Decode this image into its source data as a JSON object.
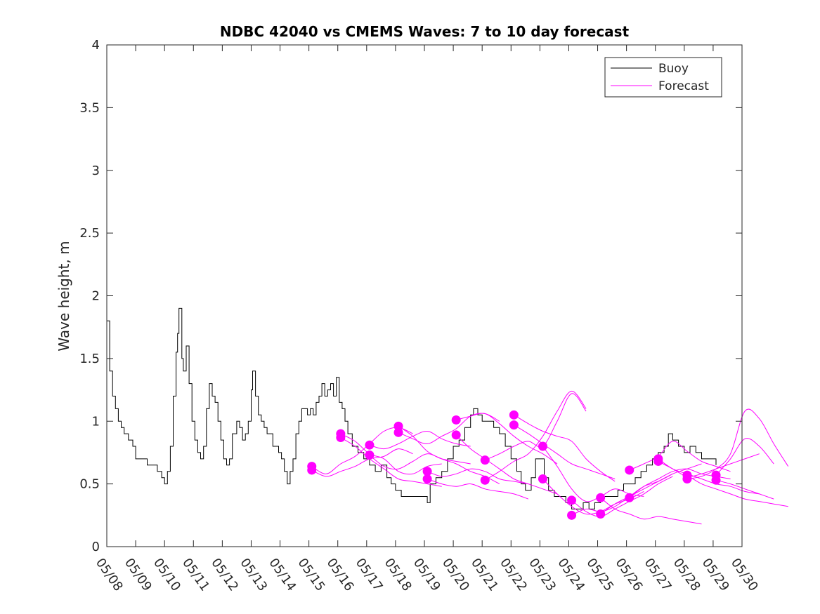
{
  "chart_data": {
    "type": "line",
    "title": "NDBC 42040 vs CMEMS Waves: 7 to 10 day forecast",
    "xlabel": "",
    "ylabel": "Wave height, m",
    "xlim": [
      0,
      22
    ],
    "ylim": [
      0,
      4
    ],
    "grid": false,
    "legend_position": "top-right",
    "x_tick_values": [
      0,
      1,
      2,
      3,
      4,
      5,
      6,
      7,
      8,
      9,
      10,
      11,
      12,
      13,
      14,
      15,
      16,
      17,
      18,
      19,
      20,
      21,
      22
    ],
    "x_tick_labels": [
      "05/08",
      "05/09",
      "05/10",
      "05/11",
      "05/12",
      "05/13",
      "05/14",
      "05/15",
      "05/16",
      "05/17",
      "05/18",
      "05/19",
      "05/20",
      "05/21",
      "05/22",
      "05/23",
      "05/24",
      "05/25",
      "05/26",
      "05/27",
      "05/28",
      "05/29",
      "05/30"
    ],
    "y_tick_values": [
      0,
      0.5,
      1,
      1.5,
      2,
      2.5,
      3,
      3.5,
      4
    ],
    "y_tick_labels": [
      "0",
      "0.5",
      "1",
      "1.5",
      "2",
      "2.5",
      "3",
      "3.5",
      "4"
    ],
    "buoy": {
      "name": "Buoy",
      "color": "#000000",
      "points": [
        [
          0.0,
          1.8
        ],
        [
          0.1,
          1.4
        ],
        [
          0.2,
          1.2
        ],
        [
          0.3,
          1.1
        ],
        [
          0.4,
          1.0
        ],
        [
          0.5,
          0.95
        ],
        [
          0.6,
          0.9
        ],
        [
          0.75,
          0.85
        ],
        [
          0.9,
          0.8
        ],
        [
          1.0,
          0.7
        ],
        [
          1.2,
          0.7
        ],
        [
          1.4,
          0.65
        ],
        [
          1.6,
          0.65
        ],
        [
          1.75,
          0.6
        ],
        [
          1.9,
          0.55
        ],
        [
          2.0,
          0.5
        ],
        [
          2.1,
          0.6
        ],
        [
          2.2,
          0.8
        ],
        [
          2.3,
          1.2
        ],
        [
          2.4,
          1.55
        ],
        [
          2.45,
          1.7
        ],
        [
          2.5,
          1.9
        ],
        [
          2.6,
          1.5
        ],
        [
          2.65,
          1.4
        ],
        [
          2.75,
          1.6
        ],
        [
          2.85,
          1.3
        ],
        [
          2.95,
          1.0
        ],
        [
          3.05,
          0.85
        ],
        [
          3.15,
          0.75
        ],
        [
          3.25,
          0.7
        ],
        [
          3.35,
          0.8
        ],
        [
          3.45,
          1.1
        ],
        [
          3.55,
          1.3
        ],
        [
          3.65,
          1.2
        ],
        [
          3.75,
          1.15
        ],
        [
          3.85,
          1.0
        ],
        [
          3.95,
          0.85
        ],
        [
          4.05,
          0.7
        ],
        [
          4.15,
          0.65
        ],
        [
          4.25,
          0.7
        ],
        [
          4.35,
          0.9
        ],
        [
          4.5,
          1.0
        ],
        [
          4.6,
          0.95
        ],
        [
          4.7,
          0.85
        ],
        [
          4.8,
          0.9
        ],
        [
          4.9,
          1.0
        ],
        [
          5.0,
          1.25
        ],
        [
          5.05,
          1.4
        ],
        [
          5.15,
          1.2
        ],
        [
          5.25,
          1.05
        ],
        [
          5.35,
          1.0
        ],
        [
          5.45,
          0.95
        ],
        [
          5.55,
          0.9
        ],
        [
          5.65,
          0.9
        ],
        [
          5.75,
          0.8
        ],
        [
          5.85,
          0.8
        ],
        [
          5.95,
          0.75
        ],
        [
          6.05,
          0.7
        ],
        [
          6.15,
          0.6
        ],
        [
          6.25,
          0.5
        ],
        [
          6.35,
          0.6
        ],
        [
          6.45,
          0.7
        ],
        [
          6.55,
          0.9
        ],
        [
          6.65,
          1.0
        ],
        [
          6.75,
          1.1
        ],
        [
          6.85,
          1.1
        ],
        [
          6.95,
          1.05
        ],
        [
          7.05,
          1.1
        ],
        [
          7.15,
          1.05
        ],
        [
          7.25,
          1.15
        ],
        [
          7.35,
          1.2
        ],
        [
          7.45,
          1.3
        ],
        [
          7.55,
          1.2
        ],
        [
          7.65,
          1.25
        ],
        [
          7.75,
          1.3
        ],
        [
          7.85,
          1.2
        ],
        [
          7.95,
          1.35
        ],
        [
          8.05,
          1.15
        ],
        [
          8.15,
          1.1
        ],
        [
          8.25,
          1.0
        ],
        [
          8.35,
          0.9
        ],
        [
          8.5,
          0.8
        ],
        [
          8.7,
          0.75
        ],
        [
          8.9,
          0.7
        ],
        [
          9.1,
          0.65
        ],
        [
          9.3,
          0.6
        ],
        [
          9.5,
          0.65
        ],
        [
          9.7,
          0.55
        ],
        [
          9.85,
          0.5
        ],
        [
          10.0,
          0.45
        ],
        [
          10.2,
          0.4
        ],
        [
          10.4,
          0.4
        ],
        [
          10.6,
          0.4
        ],
        [
          10.8,
          0.4
        ],
        [
          11.0,
          0.4
        ],
        [
          11.1,
          0.35
        ],
        [
          11.2,
          0.5
        ],
        [
          11.4,
          0.55
        ],
        [
          11.6,
          0.6
        ],
        [
          11.8,
          0.7
        ],
        [
          12.0,
          0.8
        ],
        [
          12.2,
          0.85
        ],
        [
          12.4,
          0.95
        ],
        [
          12.6,
          1.05
        ],
        [
          12.7,
          1.1
        ],
        [
          12.85,
          1.05
        ],
        [
          13.0,
          1.0
        ],
        [
          13.2,
          1.0
        ],
        [
          13.4,
          0.95
        ],
        [
          13.6,
          0.9
        ],
        [
          13.8,
          0.8
        ],
        [
          14.0,
          0.7
        ],
        [
          14.2,
          0.6
        ],
        [
          14.35,
          0.5
        ],
        [
          14.5,
          0.45
        ],
        [
          14.7,
          0.55
        ],
        [
          14.85,
          0.7
        ],
        [
          15.0,
          0.7
        ],
        [
          15.15,
          0.55
        ],
        [
          15.3,
          0.45
        ],
        [
          15.5,
          0.4
        ],
        [
          15.7,
          0.4
        ],
        [
          15.9,
          0.35
        ],
        [
          16.1,
          0.3
        ],
        [
          16.3,
          0.3
        ],
        [
          16.5,
          0.35
        ],
        [
          16.7,
          0.3
        ],
        [
          16.9,
          0.35
        ],
        [
          17.1,
          0.4
        ],
        [
          17.3,
          0.4
        ],
        [
          17.5,
          0.4
        ],
        [
          17.7,
          0.45
        ],
        [
          17.9,
          0.5
        ],
        [
          18.1,
          0.5
        ],
        [
          18.3,
          0.55
        ],
        [
          18.5,
          0.6
        ],
        [
          18.7,
          0.65
        ],
        [
          18.9,
          0.7
        ],
        [
          19.1,
          0.75
        ],
        [
          19.3,
          0.8
        ],
        [
          19.45,
          0.9
        ],
        [
          19.6,
          0.85
        ],
        [
          19.8,
          0.8
        ],
        [
          20.0,
          0.75
        ],
        [
          20.2,
          0.8
        ],
        [
          20.4,
          0.75
        ],
        [
          20.6,
          0.7
        ],
        [
          20.8,
          0.7
        ],
        [
          21.0,
          0.7
        ],
        [
          21.1,
          0.65
        ]
      ]
    },
    "forecast": {
      "name": "Forecast",
      "color": "#ff00ff",
      "runs": [
        {
          "x0": 7.1,
          "y0": 0.64,
          "step": 0.5,
          "values": [
            0.64,
            0.58,
            0.66,
            0.72,
            0.82,
            0.92,
            0.95,
            0.9
          ]
        },
        {
          "x0": 7.1,
          "y0": 0.61,
          "step": 0.5,
          "values": [
            0.61,
            0.56,
            0.6,
            0.64,
            0.7,
            0.72,
            0.78,
            0.74
          ]
        },
        {
          "x0": 8.1,
          "y0": 0.9,
          "step": 0.5,
          "values": [
            0.9,
            0.84,
            0.74,
            0.7,
            0.6,
            0.58,
            0.64,
            0.66
          ]
        },
        {
          "x0": 8.1,
          "y0": 0.87,
          "step": 0.5,
          "values": [
            0.87,
            0.8,
            0.7,
            0.62,
            0.54,
            0.52,
            0.5,
            0.48
          ]
        },
        {
          "x0": 9.1,
          "y0": 0.81,
          "step": 0.5,
          "values": [
            0.81,
            0.78,
            0.82,
            0.88,
            0.92,
            0.86,
            0.82,
            0.8
          ]
        },
        {
          "x0": 9.1,
          "y0": 0.73,
          "step": 0.5,
          "values": [
            0.73,
            0.64,
            0.62,
            0.68,
            0.74,
            0.7,
            0.68,
            0.66
          ]
        },
        {
          "x0": 10.1,
          "y0": 0.96,
          "step": 0.5,
          "values": [
            0.96,
            0.88,
            0.76,
            0.7,
            0.66,
            0.6,
            0.56,
            0.5
          ]
        },
        {
          "x0": 10.1,
          "y0": 0.91,
          "step": 0.5,
          "values": [
            0.91,
            0.86,
            0.82,
            0.88,
            0.94,
            1.04,
            1.06,
            1.0
          ]
        },
        {
          "x0": 11.1,
          "y0": 0.6,
          "step": 0.5,
          "values": [
            0.6,
            0.56,
            0.58,
            0.62,
            0.6,
            0.54,
            0.52,
            0.5
          ]
        },
        {
          "x0": 11.1,
          "y0": 0.54,
          "step": 0.5,
          "values": [
            0.54,
            0.5,
            0.48,
            0.5,
            0.46,
            0.44,
            0.42,
            0.38
          ]
        },
        {
          "x0": 12.1,
          "y0": 1.01,
          "step": 0.5,
          "values": [
            1.01,
            1.04,
            1.06,
            0.98,
            0.88,
            0.8,
            0.74,
            0.66
          ]
        },
        {
          "x0": 12.1,
          "y0": 0.89,
          "step": 0.5,
          "values": [
            0.89,
            0.78,
            0.7,
            0.62,
            0.54,
            0.5,
            0.46,
            0.42
          ]
        },
        {
          "x0": 13.1,
          "y0": 0.69,
          "step": 0.5,
          "values": [
            0.69,
            0.74,
            0.8,
            0.84,
            0.8,
            1.0,
            1.22,
            1.08
          ]
        },
        {
          "x0": 13.1,
          "y0": 0.53,
          "step": 0.5,
          "values": [
            0.53,
            0.6,
            0.68,
            0.74,
            0.88,
            1.08,
            1.24,
            1.1
          ]
        },
        {
          "x0": 14.1,
          "y0": 1.05,
          "step": 0.5,
          "values": [
            1.05,
            0.98,
            0.92,
            0.88,
            0.84,
            0.7,
            0.6,
            0.52
          ]
        },
        {
          "x0": 14.1,
          "y0": 0.97,
          "step": 0.5,
          "values": [
            0.97,
            0.9,
            0.82,
            0.74,
            0.66,
            0.62,
            0.58,
            0.54
          ]
        },
        {
          "x0": 15.1,
          "y0": 0.8,
          "step": 0.5,
          "values": [
            0.8,
            0.64,
            0.46,
            0.36,
            0.4,
            0.46,
            0.42,
            0.4
          ]
        },
        {
          "x0": 15.1,
          "y0": 0.54,
          "step": 0.5,
          "values": [
            0.54,
            0.42,
            0.32,
            0.26,
            0.28,
            0.34,
            0.38,
            0.44
          ]
        },
        {
          "x0": 16.1,
          "y0": 0.37,
          "step": 0.5,
          "values": [
            0.37,
            0.28,
            0.24,
            0.3,
            0.36,
            0.42,
            0.5,
            0.56
          ]
        },
        {
          "x0": 16.1,
          "y0": 0.25,
          "step": 0.5,
          "values": [
            0.25,
            0.3,
            0.28,
            0.32,
            0.4,
            0.48,
            0.52,
            0.58
          ]
        },
        {
          "x0": 17.1,
          "y0": 0.39,
          "step": 0.5,
          "values": [
            0.39,
            0.3,
            0.26,
            0.22,
            0.24,
            0.22,
            0.2,
            0.18
          ]
        },
        {
          "x0": 17.1,
          "y0": 0.26,
          "step": 0.5,
          "values": [
            0.26,
            0.34,
            0.4,
            0.46,
            0.52,
            0.58,
            0.62,
            0.66
          ]
        },
        {
          "x0": 18.1,
          "y0": 0.61,
          "step": 0.5,
          "values": [
            0.61,
            0.66,
            0.72,
            0.84,
            0.76,
            0.68,
            0.64,
            0.6
          ]
        },
        {
          "x0": 18.1,
          "y0": 0.39,
          "step": 0.5,
          "values": [
            0.39,
            0.48,
            0.54,
            0.6,
            0.62,
            0.58,
            0.56,
            0.54
          ]
        },
        {
          "x0": 19.1,
          "y0": 0.7,
          "step": 0.5,
          "values": [
            0.7,
            0.62,
            0.58,
            0.54,
            0.5,
            0.48,
            0.44,
            0.42
          ]
        },
        {
          "x0": 19.1,
          "y0": 0.68,
          "step": 0.5,
          "values": [
            0.68,
            0.62,
            0.56,
            0.58,
            0.62,
            0.66,
            0.7,
            0.74
          ]
        },
        {
          "x0": 20.1,
          "y0": 0.57,
          "step": 0.5,
          "values": [
            0.57,
            0.5,
            0.46,
            0.42,
            0.38,
            0.36,
            0.34,
            0.32
          ]
        },
        {
          "x0": 20.1,
          "y0": 0.54,
          "step": 0.5,
          "values": [
            0.54,
            0.56,
            0.62,
            0.74,
            1.08,
            1.02,
            0.82,
            0.64
          ]
        },
        {
          "x0": 21.1,
          "y0": 0.57,
          "step": 0.5,
          "values": [
            0.57,
            0.7,
            0.86,
            0.8,
            0.66
          ]
        },
        {
          "x0": 21.1,
          "y0": 0.53,
          "step": 0.5,
          "values": [
            0.53,
            0.5,
            0.46,
            0.42,
            0.38
          ]
        }
      ]
    }
  }
}
